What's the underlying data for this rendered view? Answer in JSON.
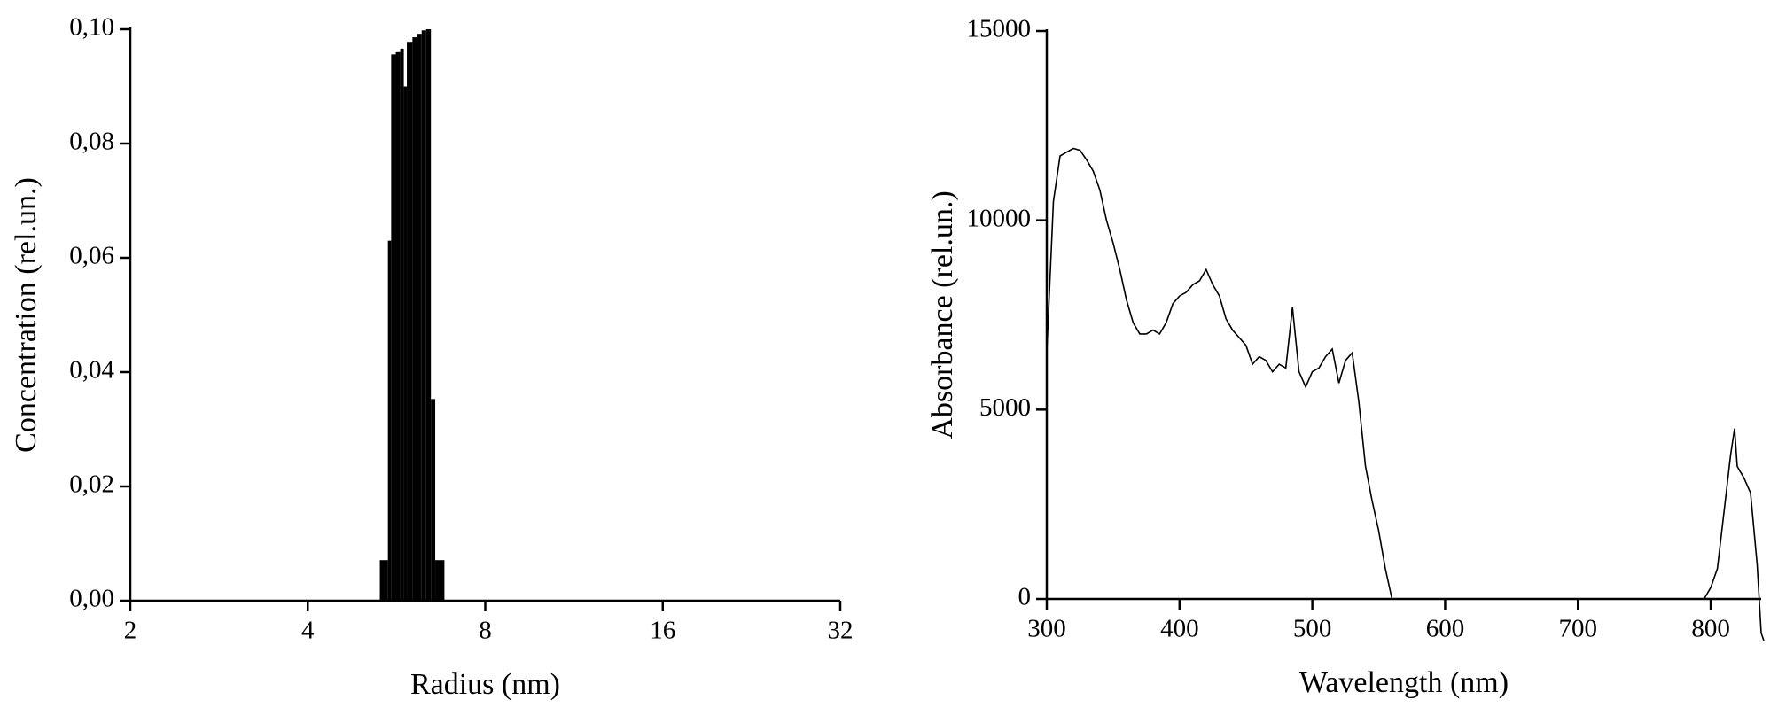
{
  "chart_data": [
    {
      "type": "histogram",
      "x_label": "Radius (nm)",
      "y_label": "Concentration (rel.un.)",
      "color": "#000000",
      "xscale": "log",
      "bins": [
        5.3,
        5.47,
        5.54,
        5.64,
        5.74,
        5.82,
        5.89,
        6.02,
        6.13,
        6.24,
        6.35,
        6.47,
        6.58,
        6.82
      ],
      "values": [
        0.0071,
        0.063,
        0.0956,
        0.096,
        0.0966,
        0.09,
        0.0978,
        0.0986,
        0.0992,
        0.0998,
        0.1,
        0.0353,
        0.0071
      ],
      "xlim": [
        2,
        32
      ],
      "xticks": [
        2,
        4,
        8,
        16,
        32
      ],
      "ylim": [
        0,
        0.1
      ],
      "yticks": [
        {
          "value": 0,
          "label": "0,00"
        },
        {
          "value": 0.02,
          "label": "0,02"
        },
        {
          "value": 0.04,
          "label": "0,04"
        },
        {
          "value": 0.06,
          "label": "0,06"
        },
        {
          "value": 0.08,
          "label": "0,08"
        },
        {
          "value": 0.1,
          "label": "0,10"
        }
      ]
    },
    {
      "type": "line",
      "x_label": "Wavelength (nm)",
      "y_label": "Absorbance (rel.un.)",
      "color": "#000000",
      "x": [
        300,
        305,
        310,
        315,
        320,
        325,
        330,
        335,
        340,
        345,
        350,
        355,
        360,
        365,
        370,
        375,
        380,
        385,
        390,
        395,
        400,
        405,
        410,
        415,
        420,
        425,
        430,
        435,
        440,
        445,
        450,
        455,
        460,
        465,
        470,
        475,
        480,
        485,
        490,
        495,
        500,
        505,
        510,
        515,
        520,
        525,
        530,
        535,
        540,
        545,
        550,
        555,
        560,
        600,
        650,
        700,
        750,
        795,
        800,
        805,
        810,
        815,
        818,
        820,
        825,
        830,
        835,
        838,
        840
      ],
      "values": [
        6500,
        10500,
        11700,
        11800,
        11900,
        11850,
        11600,
        11300,
        10800,
        10000,
        9400,
        8700,
        7900,
        7300,
        7000,
        7000,
        7100,
        7000,
        7300,
        7800,
        8000,
        8100,
        8300,
        8400,
        8700,
        8300,
        8000,
        7400,
        7100,
        6900,
        6700,
        6200,
        6400,
        6300,
        6000,
        6200,
        6100,
        7700,
        6000,
        5600,
        6000,
        6100,
        6400,
        6600,
        5700,
        6300,
        6500,
        5200,
        3500,
        2600,
        1800,
        800,
        0,
        0,
        0,
        0,
        0,
        0,
        300,
        800,
        2300,
        3800,
        4500,
        3500,
        3200,
        2800,
        900,
        -900,
        -1100
      ],
      "xlim": [
        300,
        838
      ],
      "xticks": [
        300,
        400,
        500,
        600,
        700,
        800
      ],
      "ylim": [
        0,
        15000
      ],
      "yticks": [
        0,
        5000,
        10000,
        15000
      ]
    }
  ]
}
